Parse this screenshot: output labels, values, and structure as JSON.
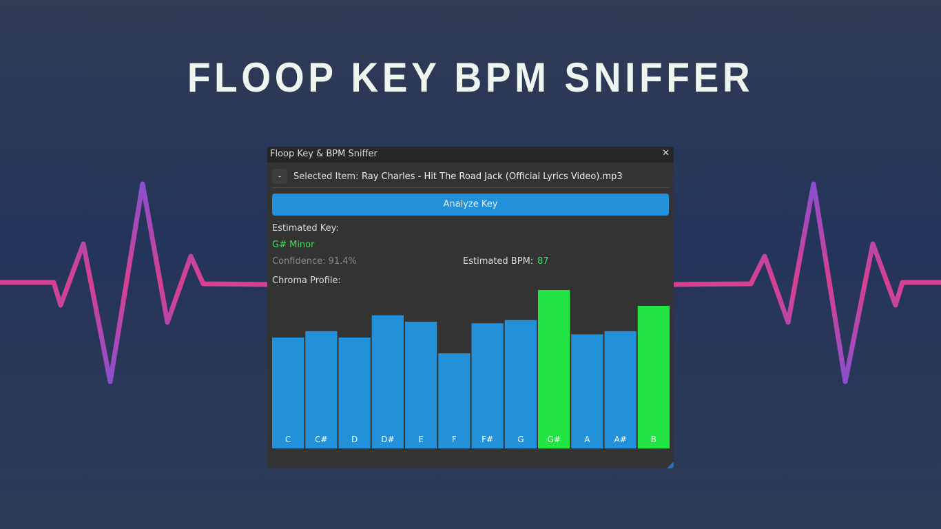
{
  "title": "FLOOP KEY BPM SNIFFER",
  "window": {
    "title": "Floop Key & BPM Sniffer",
    "close": "✕",
    "collapse": "-",
    "selected_label": "Selected Item:",
    "selected_value": "Ray Charles - Hit The Road Jack (Official Lyrics Video).mp3",
    "button": "Analyze Key",
    "key_label": "Estimated Key:",
    "key_value": "G# Minor",
    "confidence": "Confidence: 91.4%",
    "bpm_label": "Estimated BPM:",
    "bpm_value": 87,
    "chroma_label": "Chroma Profile:"
  },
  "chart_data": {
    "type": "bar",
    "categories": [
      "C",
      "C#",
      "D",
      "D#",
      "E",
      "F",
      "F#",
      "G",
      "G#",
      "A",
      "A#",
      "B"
    ],
    "values": [
      0.7,
      0.74,
      0.7,
      0.84,
      0.8,
      0.6,
      0.79,
      0.81,
      1.0,
      0.72,
      0.74,
      0.9
    ],
    "colors": [
      "#2391d9",
      "#2391d9",
      "#2391d9",
      "#2391d9",
      "#2391d9",
      "#2391d9",
      "#2391d9",
      "#2391d9",
      "#22e544",
      "#2391d9",
      "#2391d9",
      "#22e544"
    ],
    "ylim": [
      0,
      1
    ]
  }
}
